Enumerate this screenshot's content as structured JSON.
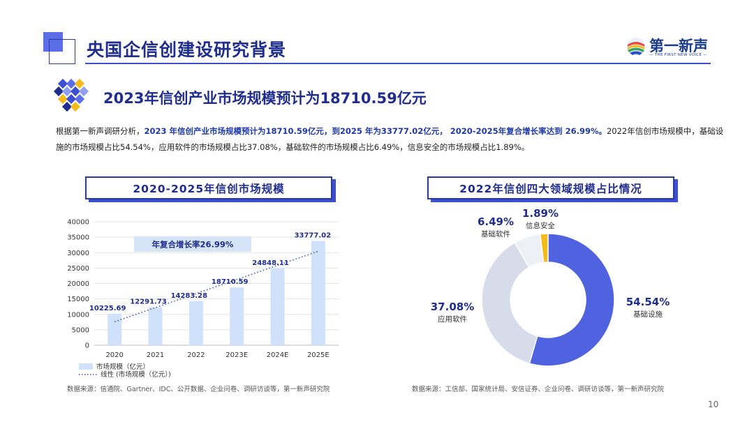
{
  "header": {
    "title": "央国企信创建设研究背景",
    "logo_text": "第一新声",
    "logo_sub": "— THE FIRST NEW VOICE —"
  },
  "headline": "2023年信创产业市场规模预计为18710.59亿元",
  "paragraph": {
    "p1": "根据第一新声调研分析，",
    "b1": "2023 年信创产业市场规模预计为18710.59亿元，到2025 年为33777.02亿元， 2020-2025年复合增长率达到 26.99%。",
    "p2": "2022年信创市场规模中，基础设施的市场规模占比54.54%，应用软件的市场规模占比37.08%，基础软件的市场规模占比6.49%，信息安全的市场规模占比1.89%。"
  },
  "left_chart": {
    "box_title": "2020-2025年信创市场规模",
    "source": "数据来源：信通院、Gartner、IDC、公开数据、企业问卷、调研访谈等，第一新声研究院"
  },
  "right_chart": {
    "box_title": "2022年信创四大领域规模占比情况",
    "source": "数据来源：工信部、国家统计局、安信证券、企业问卷、调研访谈等，第一新声研究院"
  },
  "page_number": "10",
  "chart_data": [
    {
      "type": "bar",
      "categories": [
        "2020",
        "2021",
        "2022",
        "2023E",
        "2024E",
        "2025E"
      ],
      "series": [
        {
          "name": "市场规模（亿元）",
          "values": [
            10225.69,
            12291.73,
            14283.28,
            18710.59,
            24848.11,
            33777.02
          ]
        }
      ],
      "value_labels": [
        "10225.69",
        "12291.73",
        "14283.28",
        "18710.59",
        "24848.11",
        "33777.02"
      ],
      "trendline": {
        "name": "线性 (市场规模（亿元）)",
        "style": "dotted"
      },
      "annotation": "年复合增长率26.99%",
      "yticks": [
        "0",
        "5000",
        "10000",
        "15000",
        "20000",
        "25000",
        "30000",
        "35000",
        "40000"
      ],
      "ylim": [
        0,
        40000
      ],
      "grid": true,
      "legend_position": "bottom-left",
      "colors": {
        "bar": "#cfe1fb",
        "trend": "#3a55c8",
        "label": "#1f2d8f",
        "annotation_bg": "#d6e4f8"
      }
    },
    {
      "type": "pie",
      "donut": true,
      "slices": [
        {
          "label": "基础设施",
          "value": 54.54,
          "pct_text": "54.54%",
          "color": "#4f63e0"
        },
        {
          "label": "应用软件",
          "value": 37.08,
          "pct_text": "37.08%",
          "color": "#d7dcea"
        },
        {
          "label": "基础软件",
          "value": 6.49,
          "pct_text": "6.49%",
          "color": "#eef0f5"
        },
        {
          "label": "信息安全",
          "value": 1.89,
          "pct_text": "1.89%",
          "color": "#f5bb1b"
        }
      ]
    }
  ]
}
